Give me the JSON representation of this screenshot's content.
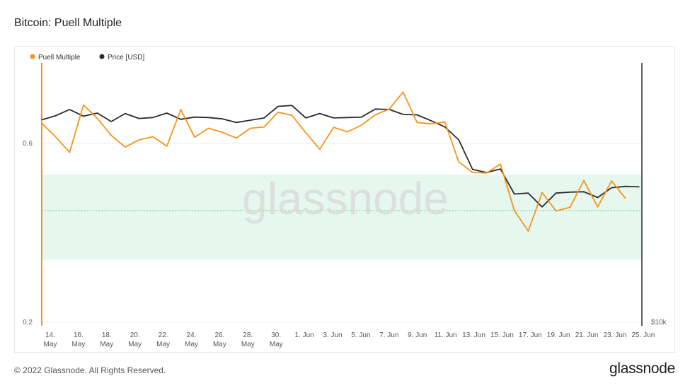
{
  "title": "Bitcoin: Puell Multiple",
  "footer": {
    "copyright": "© 2022 Glassnode. All Rights Reserved.",
    "logo": "glassnode"
  },
  "watermark": "glassnode",
  "colors": {
    "puell": "#f7931a",
    "price": "#2b2b2b",
    "band": "#e5f7ee",
    "band_line": "#6fcf97",
    "grid": "#eeeeee"
  },
  "chart_data": {
    "type": "line",
    "legend": [
      {
        "name": "Puell Multiple",
        "color": "#f7931a"
      },
      {
        "name": "Price [USD]",
        "color": "#2b2b2b"
      }
    ],
    "legend_position": "top-left",
    "x_ticks": [
      [
        "14.",
        "May"
      ],
      [
        "16.",
        "May"
      ],
      [
        "18.",
        "May"
      ],
      [
        "20.",
        "May"
      ],
      [
        "22.",
        "May"
      ],
      [
        "24.",
        "May"
      ],
      [
        "26.",
        "May"
      ],
      [
        "28.",
        "May"
      ],
      [
        "30.",
        "May"
      ],
      [
        "1. Jun"
      ],
      [
        "3. Jun"
      ],
      [
        "5. Jun"
      ],
      [
        "7. Jun"
      ],
      [
        "9. Jun"
      ],
      [
        "11. Jun"
      ],
      [
        "13. Jun"
      ],
      [
        "15. Jun"
      ],
      [
        "17. Jun"
      ],
      [
        "19. Jun"
      ],
      [
        "21. Jun"
      ],
      [
        "23. Jun"
      ],
      [
        "25. Jun"
      ]
    ],
    "y_left_ticks": [
      "0.6",
      "0.2"
    ],
    "y_right_ticks": [
      "$10k"
    ],
    "y_left_range": [
      0.2,
      0.8
    ],
    "band": {
      "low": 0.34,
      "high": 0.53,
      "mid": 0.45
    },
    "series": [
      {
        "name": "Puell Multiple",
        "values": [
          0.645,
          0.615,
          0.58,
          0.686,
          0.656,
          0.618,
          0.592,
          0.608,
          0.615,
          0.594,
          0.676,
          0.614,
          0.634,
          0.625,
          0.612,
          0.634,
          0.637,
          0.67,
          0.663,
          0.624,
          0.587,
          0.636,
          0.626,
          0.641,
          0.664,
          0.677,
          0.715,
          0.647,
          0.644,
          0.648,
          0.559,
          0.535,
          0.534,
          0.554,
          0.45,
          0.404,
          0.49,
          0.449,
          0.457,
          0.517,
          0.458,
          0.516,
          0.477
        ]
      },
      {
        "name": "Price [USD]",
        "values": [
          0.653,
          0.662,
          0.676,
          0.661,
          0.668,
          0.649,
          0.667,
          0.656,
          0.658,
          0.668,
          0.654,
          0.659,
          0.658,
          0.655,
          0.647,
          0.652,
          0.657,
          0.683,
          0.685,
          0.657,
          0.667,
          0.657,
          0.658,
          0.659,
          0.677,
          0.676,
          0.665,
          0.664,
          0.651,
          0.637,
          0.608,
          0.542,
          0.535,
          0.543,
          0.487,
          0.489,
          0.458,
          0.489,
          0.491,
          0.492,
          0.479,
          0.501,
          0.504,
          0.503
        ]
      }
    ]
  }
}
